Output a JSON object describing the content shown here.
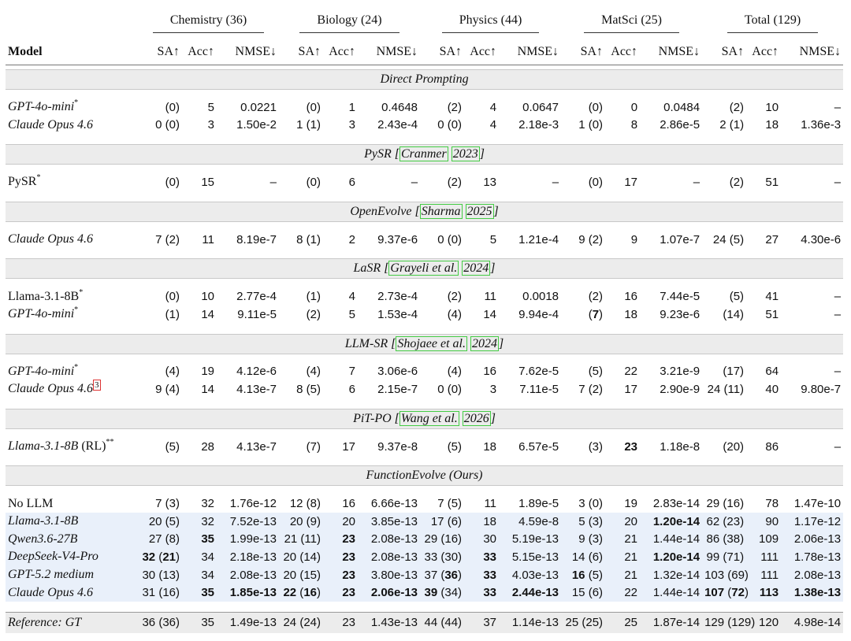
{
  "header": {
    "model": "Model",
    "groups": [
      "Chemistry (36)",
      "Biology (24)",
      "Physics (44)",
      "MatSci (25)",
      "Total (129)"
    ],
    "metrics": [
      "SA↑",
      "Acc↑",
      "NMSE↓"
    ]
  },
  "sections": [
    {
      "title": [
        "Direct Prompting"
      ],
      "rows": [
        {
          "model": [
            {
              "i": "GPT-4o-mini"
            },
            {
              "sup": "*"
            }
          ],
          "cells": [
            "(0)",
            "5",
            "0.0221",
            "(0)",
            "1",
            "0.4648",
            "(2)",
            "4",
            "0.0647",
            "(0)",
            "0",
            "0.0484",
            "(2)",
            "10",
            "–"
          ]
        },
        {
          "model": [
            {
              "i": "Claude Opus 4.6"
            }
          ],
          "cells": [
            "0 (0)",
            "3",
            "1.50e-2",
            "1 (1)",
            "3",
            "2.43e-4",
            "0 (0)",
            "4",
            "2.18e-3",
            "1 (0)",
            "8",
            "2.86e-5",
            "2 (1)",
            "18",
            "1.36e-3"
          ]
        }
      ]
    },
    {
      "title": [
        "PySR [",
        {
          "ref": "Cranmer"
        },
        " ",
        {
          "ref": "2023"
        },
        "]"
      ],
      "rows": [
        {
          "model": [
            "PySR",
            {
              "sup": "*"
            }
          ],
          "cells": [
            "(0)",
            "15",
            "–",
            "(0)",
            "6",
            "–",
            "(2)",
            "13",
            "–",
            "(0)",
            "17",
            "–",
            "(2)",
            "51",
            "–"
          ]
        }
      ]
    },
    {
      "title": [
        "OpenEvolve [",
        {
          "ref": "Sharma"
        },
        " ",
        {
          "ref": "2025"
        },
        "]"
      ],
      "rows": [
        {
          "model": [
            {
              "i": "Claude Opus 4.6"
            }
          ],
          "cells": [
            "7 (2)",
            "11",
            "8.19e-7",
            "8 (1)",
            "2",
            "9.37e-6",
            "0 (0)",
            "5",
            "1.21e-4",
            "9 (2)",
            "9",
            "1.07e-7",
            "24 (5)",
            "27",
            "4.30e-6"
          ]
        }
      ]
    },
    {
      "title": [
        "LaSR [",
        {
          "ref": "Grayeli et al."
        },
        " ",
        {
          "ref": "2024"
        },
        "]"
      ],
      "rows": [
        {
          "model": [
            "Llama-3.1-8B",
            {
              "sup": "*"
            }
          ],
          "cells": [
            "(0)",
            "10",
            "2.77e-4",
            "(1)",
            "4",
            "2.73e-4",
            "(2)",
            "11",
            "0.0018",
            "(2)",
            "16",
            "7.44e-5",
            "(5)",
            "41",
            "–"
          ]
        },
        {
          "model": [
            {
              "i": "GPT-4o-mini"
            },
            {
              "sup": "*"
            }
          ],
          "cells": [
            "(1)",
            "14",
            "9.11e-5",
            "(2)",
            "5",
            "1.53e-4",
            "(4)",
            "14",
            "9.94e-4",
            [
              "(",
              {
                "b": "7"
              },
              ")"
            ],
            "18",
            "9.23e-6",
            "(14)",
            "51",
            "–"
          ]
        }
      ]
    },
    {
      "title": [
        "LLM-SR [",
        {
          "ref": "Shojaee et al."
        },
        " ",
        {
          "ref": "2024"
        },
        "]"
      ],
      "rows": [
        {
          "model": [
            {
              "i": "GPT-4o-mini"
            },
            {
              "sup": "*"
            }
          ],
          "cells": [
            "(4)",
            "19",
            "4.12e-6",
            "(4)",
            "7",
            "3.06e-6",
            "(4)",
            "16",
            "7.62e-5",
            "(5)",
            "22",
            "3.21e-9",
            "(17)",
            "64",
            "–"
          ]
        },
        {
          "model": [
            {
              "i": "Claude Opus 4.6"
            },
            {
              "note": "3"
            }
          ],
          "cells": [
            "9 (4)",
            "14",
            "4.13e-7",
            "8 (5)",
            "6",
            "2.15e-7",
            "0 (0)",
            "3",
            "7.11e-5",
            "7 (2)",
            "17",
            "2.90e-9",
            "24 (11)",
            "40",
            "9.80e-7"
          ]
        }
      ]
    },
    {
      "title": [
        "PiT-PO [",
        {
          "ref": "Wang et al."
        },
        " ",
        {
          "ref": "2026"
        },
        "]"
      ],
      "rows": [
        {
          "model": [
            {
              "i": "Llama-3.1-8B"
            },
            " (RL)",
            {
              "sup": "**"
            }
          ],
          "cells": [
            "(5)",
            "28",
            "4.13e-7",
            "(7)",
            "17",
            "9.37e-8",
            "(5)",
            "18",
            "6.57e-5",
            "(3)",
            [
              {
                "b": "23"
              }
            ],
            "1.18e-8",
            "(20)",
            "86",
            "–"
          ]
        }
      ]
    },
    {
      "title": [
        "FunctionEvolve (Ours)"
      ],
      "rows": [
        {
          "model": [
            "No LLM"
          ],
          "cells": [
            "7 (3)",
            "32",
            "1.76e-12",
            "12 (8)",
            "16",
            "6.66e-13",
            "7 (5)",
            "11",
            "1.89e-5",
            "3 (0)",
            "19",
            "2.83e-14",
            "29 (16)",
            "78",
            "1.47e-10"
          ]
        },
        {
          "model": [
            {
              "i": "Llama-3.1-8B"
            }
          ],
          "highlight": true,
          "cells": [
            "20 (5)",
            "32",
            "7.52e-13",
            "20 (9)",
            "20",
            "3.85e-13",
            "17 (6)",
            "18",
            "4.59e-8",
            "5 (3)",
            "20",
            [
              {
                "b": "1.20e-14"
              }
            ],
            "62 (23)",
            "90",
            "1.17e-12"
          ]
        },
        {
          "model": [
            {
              "i": "Qwen3.6-27B"
            }
          ],
          "highlight": true,
          "cells": [
            "27 (8)",
            [
              {
                "b": "35"
              }
            ],
            "1.99e-13",
            "21 (11)",
            [
              {
                "b": "23"
              }
            ],
            "2.08e-13",
            "29 (16)",
            "30",
            "5.19e-13",
            "9 (3)",
            "21",
            "1.44e-14",
            "86 (38)",
            "109",
            "2.06e-13"
          ]
        },
        {
          "model": [
            {
              "i": "DeepSeek-V4-Pro"
            }
          ],
          "highlight": true,
          "cells": [
            [
              {
                "b": "32"
              },
              " (",
              {
                "b": "21"
              },
              ")"
            ],
            "34",
            "2.18e-13",
            "20 (14)",
            [
              {
                "b": "23"
              }
            ],
            "2.08e-13",
            "33 (30)",
            [
              {
                "b": "33"
              }
            ],
            "5.15e-13",
            "14 (6)",
            "21",
            [
              {
                "b": "1.20e-14"
              }
            ],
            "99 (71)",
            "111",
            "1.78e-13"
          ]
        },
        {
          "model": [
            {
              "i": "GPT-5.2 medium"
            }
          ],
          "highlight": true,
          "cells": [
            "30 (13)",
            "34",
            "2.08e-13",
            "20 (15)",
            [
              {
                "b": "23"
              }
            ],
            "3.80e-13",
            [
              "37 (",
              {
                "b": "36"
              },
              ")"
            ],
            [
              {
                "b": "33"
              }
            ],
            "4.03e-13",
            [
              {
                "b": "16"
              },
              " (5)"
            ],
            "21",
            "1.32e-14",
            "103 (69)",
            "111",
            "2.08e-13"
          ]
        },
        {
          "model": [
            {
              "i": "Claude Opus 4.6"
            }
          ],
          "highlight": true,
          "cells": [
            "31 (16)",
            [
              {
                "b": "35"
              }
            ],
            [
              {
                "b": "1.85e-13"
              }
            ],
            [
              {
                "b": "22"
              },
              " (",
              {
                "b": "16"
              },
              ")"
            ],
            [
              {
                "b": "23"
              }
            ],
            [
              {
                "b": "2.06e-13"
              }
            ],
            [
              {
                "b": "39"
              },
              " (34)"
            ],
            [
              {
                "b": "33"
              }
            ],
            [
              {
                "b": "2.44e-13"
              }
            ],
            "15 (6)",
            "22",
            "1.44e-14",
            [
              {
                "b": "107"
              },
              " (",
              {
                "b": "72"
              },
              ")"
            ],
            [
              {
                "b": "113"
              }
            ],
            [
              {
                "b": "1.38e-13"
              }
            ]
          ]
        }
      ]
    }
  ],
  "reference": {
    "model": [
      {
        "i": "Reference: GT"
      }
    ],
    "cells": [
      "36 (36)",
      "35",
      "1.49e-13",
      "24 (24)",
      "23",
      "1.43e-13",
      "44 (44)",
      "37",
      "1.14e-13",
      "25 (25)",
      "25",
      "1.87e-14",
      "129 (129)",
      "120",
      "4.98e-14"
    ]
  }
}
